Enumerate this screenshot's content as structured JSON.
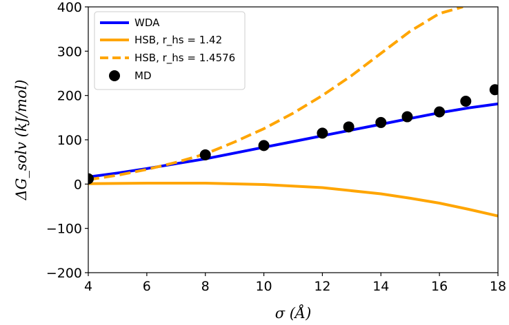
{
  "chart_data": {
    "type": "line",
    "xlabel": "σ (Å)",
    "ylabel": "ΔG_solv (kJ/mol)",
    "xlim": [
      4,
      18
    ],
    "ylim": [
      -200,
      400
    ],
    "xticks": [
      4,
      6,
      8,
      10,
      12,
      14,
      16,
      18
    ],
    "yticks": [
      -200,
      -100,
      0,
      100,
      200,
      300,
      400
    ],
    "grid": false,
    "legend_position": "top-left",
    "series": [
      {
        "name": "WDA",
        "style": "solid",
        "color": "#0000ff",
        "x": [
          4,
          5,
          6,
          7,
          8,
          9,
          10,
          11,
          12,
          13,
          14,
          15,
          16,
          17,
          18
        ],
        "y": [
          16,
          25,
          35,
          46,
          57,
          70,
          83,
          96,
          109,
          122,
          135,
          148,
          161,
          172,
          181
        ]
      },
      {
        "name": "HSB, r_hs = 1.42",
        "style": "solid",
        "color": "#ffa500",
        "x": [
          4,
          6,
          8,
          10,
          12,
          14,
          15,
          16,
          17,
          18
        ],
        "y": [
          1,
          2,
          2,
          -1,
          -8,
          -22,
          -32,
          -43,
          -57,
          -72
        ]
      },
      {
        "name": "HSB, r_hs = 1.4576",
        "style": "dashed",
        "color": "#ffa500",
        "x": [
          4,
          5,
          6,
          7,
          8,
          9,
          10,
          11,
          12,
          13,
          14,
          15,
          16,
          16.8
        ],
        "y": [
          10,
          20,
          33,
          49,
          68,
          95,
          125,
          160,
          200,
          245,
          295,
          345,
          385,
          400
        ]
      },
      {
        "name": "MD",
        "style": "markers",
        "color": "#000000",
        "x": [
          4,
          8,
          10,
          12,
          12.9,
          14,
          14.9,
          16,
          16.9,
          17.9
        ],
        "y": [
          12,
          66,
          87,
          115,
          129,
          139,
          152,
          163,
          187,
          213
        ]
      }
    ]
  }
}
